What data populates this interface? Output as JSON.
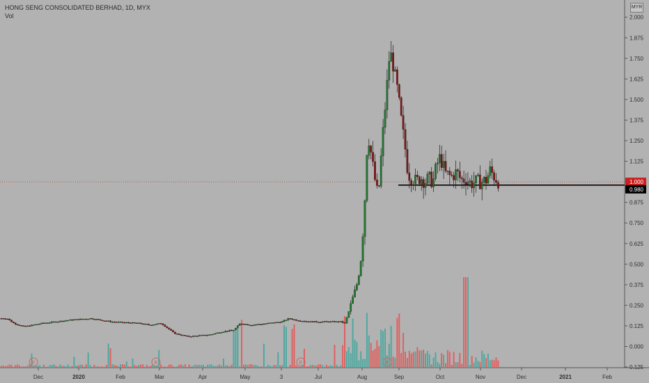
{
  "legend": {
    "title": "HONG SENG CONSOLIDATED BERHAD, 1D, MYX",
    "volume_label": "Vol"
  },
  "currency": "MYR",
  "chart_data": {
    "type": "candlestick",
    "title": "HONG SENG CONSOLIDATED BERHAD, 1D, MYX",
    "series": [
      {
        "name": "Price",
        "type": "candlestick"
      },
      {
        "name": "Vol",
        "type": "bar"
      }
    ],
    "y_axis": {
      "ticks": [
        "2.000",
        "1.875",
        "1.750",
        "1.625",
        "1.500",
        "1.375",
        "1.250",
        "1.125",
        "1.000",
        "0.875",
        "0.750",
        "0.625",
        "0.500",
        "0.375",
        "0.250",
        "0.125",
        "0.000",
        "-0.125"
      ],
      "ylim": [
        -0.125,
        2.0
      ]
    },
    "x_axis": {
      "ticks": [
        "Dec",
        "2020",
        "Feb",
        "Mar",
        "Apr",
        "May",
        "3",
        "Jul",
        "Aug",
        "Sep",
        "Oct",
        "Nov",
        "Dec",
        "2021",
        "Feb"
      ],
      "bold_ticks": [
        "2020",
        "2021"
      ]
    },
    "last_price": {
      "value": "1.000",
      "color": "#cc2020"
    },
    "horizontal_line": {
      "value": "0.980",
      "color": "#000000"
    },
    "earnings_markers": [
      "E",
      "E",
      "E",
      "E"
    ],
    "up_color": "#1f7a2e",
    "down_color": "#8a1010",
    "vol_up_color": "#4ea8a0",
    "vol_down_color": "#e06060",
    "price_path": [
      [
        0.17,
        0
      ],
      [
        0.17,
        10
      ],
      [
        0.14,
        20
      ],
      [
        0.12,
        35
      ],
      [
        0.14,
        60
      ],
      [
        0.16,
        100
      ],
      [
        0.17,
        130
      ],
      [
        0.15,
        160
      ],
      [
        0.14,
        200
      ],
      [
        0.13,
        215
      ],
      [
        0.14,
        232
      ],
      [
        0.08,
        250
      ],
      [
        0.06,
        270
      ],
      [
        0.07,
        300
      ],
      [
        0.09,
        320
      ],
      [
        0.1,
        336
      ],
      [
        0.14,
        345
      ],
      [
        0.13,
        360
      ],
      [
        0.14,
        385
      ],
      [
        0.15,
        405
      ],
      [
        0.17,
        415
      ],
      [
        0.16,
        425
      ],
      [
        0.15,
        445
      ],
      [
        0.15,
        470
      ],
      [
        0.15,
        490
      ],
      [
        0.14,
        495
      ],
      [
        0.2,
        500
      ],
      [
        0.3,
        507
      ],
      [
        0.4,
        514
      ],
      [
        0.55,
        519
      ],
      [
        0.9,
        524
      ],
      [
        1.3,
        528
      ],
      [
        1.2,
        532
      ],
      [
        1.05,
        537
      ],
      [
        0.9,
        543
      ],
      [
        1.25,
        549
      ],
      [
        1.55,
        555
      ],
      [
        1.8,
        560
      ],
      [
        1.7,
        565
      ],
      [
        1.55,
        571
      ],
      [
        1.35,
        577
      ],
      [
        1.2,
        582
      ],
      [
        1.05,
        586
      ],
      [
        1.02,
        592
      ],
      [
        1.0,
        598
      ],
      [
        1.03,
        604
      ],
      [
        1.0,
        610
      ],
      [
        1.02,
        616
      ],
      [
        1.0,
        622
      ],
      [
        1.1,
        627
      ],
      [
        1.15,
        632
      ],
      [
        1.05,
        640
      ],
      [
        1.03,
        648
      ],
      [
        1.06,
        656
      ],
      [
        1.01,
        662
      ],
      [
        1.02,
        669
      ],
      [
        0.99,
        676
      ],
      [
        1.0,
        684
      ],
      [
        1.0,
        692
      ],
      [
        1.01,
        698
      ],
      [
        1.07,
        704
      ],
      [
        1.03,
        710
      ],
      [
        1.0,
        716
      ]
    ]
  }
}
